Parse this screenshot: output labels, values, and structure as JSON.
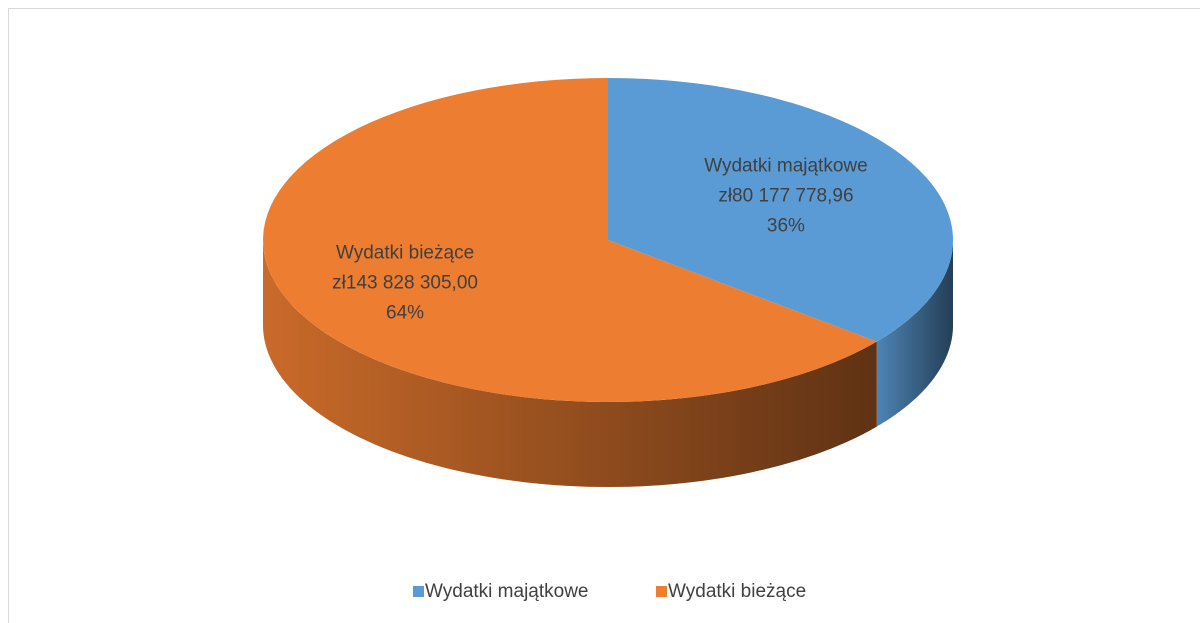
{
  "chart_data": {
    "type": "pie3d",
    "categories": [
      "Wydatki majątkowe",
      "Wydatki bieżące"
    ],
    "values": [
      80177778.96,
      143828305.0
    ],
    "value_labels": [
      "zł80 177 778,96",
      "zł143 828 305,00"
    ],
    "percentages": [
      36,
      64
    ],
    "percentage_labels": [
      "36%",
      "64%"
    ],
    "colors": [
      "#5b9bd5",
      "#ed7d31"
    ],
    "legend": "bottom"
  }
}
